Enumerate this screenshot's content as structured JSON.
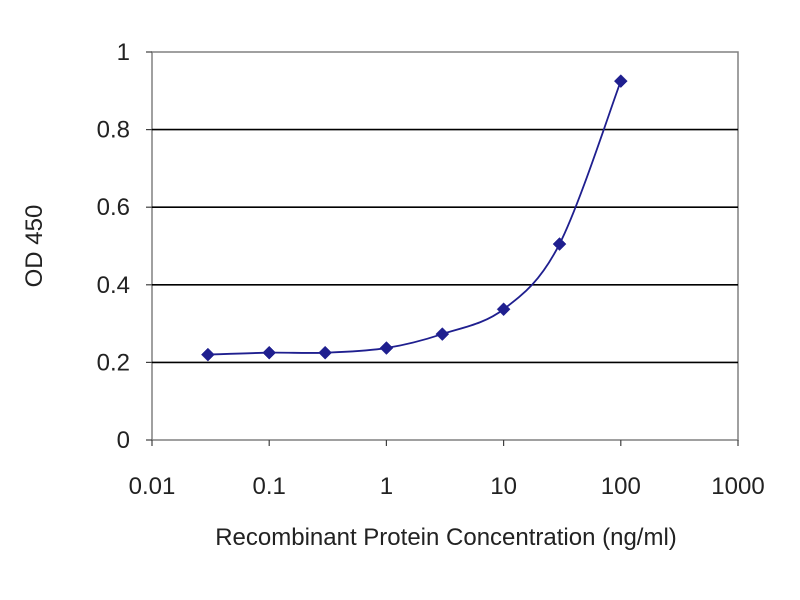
{
  "chart_data": {
    "type": "scatter",
    "title": "",
    "xlabel": "Recombinant Protein Concentration (ng/ml)",
    "ylabel": "OD 450",
    "x_scale": "log",
    "xlim": [
      0.01,
      1000
    ],
    "ylim": [
      0,
      1
    ],
    "x_ticks": [
      0.01,
      0.1,
      1,
      10,
      100,
      1000
    ],
    "x_tick_labels": [
      "0.01",
      "0.1",
      "1",
      "10",
      "100",
      "1000"
    ],
    "y_ticks": [
      0,
      0.2,
      0.4,
      0.6,
      0.8,
      1
    ],
    "y_tick_labels": [
      "0",
      "0.2",
      "0.4",
      "0.6",
      "0.8",
      "1"
    ],
    "grid": "horizontal",
    "legend": "none",
    "series": [
      {
        "x": [
          0.03,
          0.1,
          0.3,
          1,
          3,
          10,
          30,
          100
        ],
        "y": [
          0.22,
          0.225,
          0.225,
          0.237,
          0.273,
          0.337,
          0.505,
          0.925
        ],
        "style": "points with smoothed fit curve",
        "marker": "diamond",
        "color": "#1f1f8f"
      }
    ],
    "colors": {
      "series": "#1f1f8f",
      "grid": "#000000",
      "plot_background": "#ffffff"
    }
  }
}
